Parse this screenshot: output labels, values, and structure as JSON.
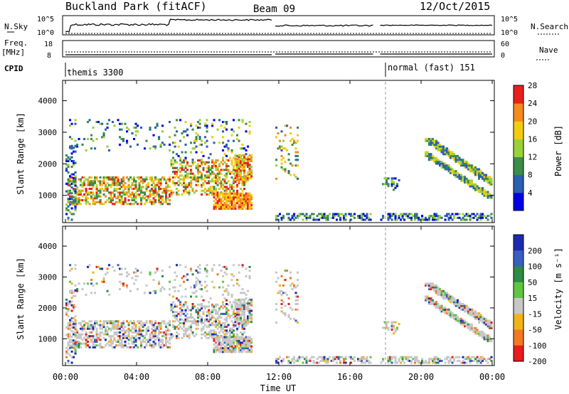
{
  "chart_data": [
    {
      "type": "line",
      "header": {
        "station": "Buckland Park (fitACF)",
        "beam": "Beam 09",
        "date": "12/Oct/2015"
      },
      "left_labels": {
        "nsky": "N.Sky",
        "freq_line1": "Freq.",
        "freq_line2": "[MHz]",
        "cpid": "CPID"
      },
      "right_labels": {
        "nsearch": "N.Search",
        "nave": "Nave"
      },
      "noise_axis": {
        "left_ticks": [
          "10^5",
          "10^0"
        ],
        "right_ticks": [
          "10^5",
          "10^0"
        ]
      },
      "freq_axis": {
        "left_ticks": [
          "18",
          "8"
        ],
        "right_ticks": [
          "60",
          "0"
        ]
      },
      "cpid_segments": [
        {
          "label": "themis 3300",
          "start_hour": 0.0
        },
        {
          "label": "normal (fast) 151",
          "start_hour": 18.0
        }
      ],
      "data_gaps_hours": [
        [
          5.8,
          5.85
        ],
        [
          11.6,
          11.75
        ],
        [
          17.3,
          17.6
        ]
      ]
    },
    {
      "type": "heatmap",
      "name": "power",
      "ylabel": "Slant Range [km]",
      "yticks": [
        "1000",
        "2000",
        "3000",
        "4000"
      ],
      "colorbar": {
        "label": "Power [dB]",
        "ticks": [
          "4",
          "8",
          "12",
          "16",
          "20",
          "24",
          "28"
        ],
        "colors": [
          "#0000e6",
          "#2b5fb0",
          "#3c8c4a",
          "#9ad13a",
          "#f2cc10",
          "#f58a1e",
          "#e8201c"
        ]
      }
    },
    {
      "type": "heatmap",
      "name": "velocity",
      "ylabel": "Slant Range [km]",
      "yticks": [
        "1000",
        "2000",
        "3000",
        "4000"
      ],
      "xticks": [
        "00:00",
        "04:00",
        "08:00",
        "12:00",
        "16:00",
        "20:00",
        "00:00"
      ],
      "xlabel": "Time UT",
      "colorbar": {
        "label": "Velocity [m s⁻¹]",
        "ticks": [
          "200",
          "100",
          "50",
          "15",
          "-15",
          "-50",
          "-100",
          "-200"
        ],
        "colors": [
          "#1c2ab0",
          "#3a5fc0",
          "#2f8a46",
          "#5fc642",
          "#c7c7c7",
          "#f0b419",
          "#f37920",
          "#e81c1c"
        ]
      }
    }
  ]
}
